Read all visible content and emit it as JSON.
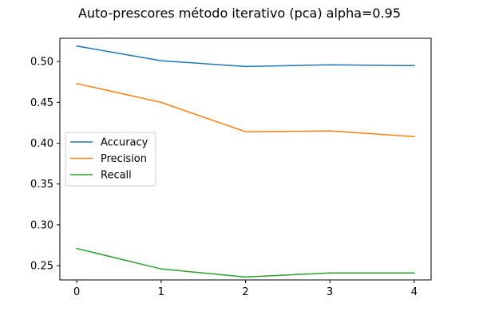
{
  "chart_data": {
    "type": "line",
    "title": "Auto-prescores método iterativo (pca) alpha=0.95",
    "xlabel": "",
    "ylabel": "",
    "x": [
      0,
      1,
      2,
      3,
      4
    ],
    "xticks": [
      "0",
      "1",
      "2",
      "3",
      "4"
    ],
    "xlim": [
      -0.2,
      4.2
    ],
    "yticks": [
      "0.25",
      "0.30",
      "0.35",
      "0.40",
      "0.45",
      "0.50"
    ],
    "ylim": [
      0.2325,
      0.5285
    ],
    "grid": false,
    "legend_position": "center-left",
    "series": [
      {
        "name": "Accuracy",
        "color": "#1f77b4",
        "values": [
          0.519,
          0.501,
          0.494,
          0.496,
          0.495
        ]
      },
      {
        "name": "Precision",
        "color": "#ff7f0e",
        "values": [
          0.473,
          0.45,
          0.414,
          0.415,
          0.408
        ]
      },
      {
        "name": "Recall",
        "color": "#2ca02c",
        "values": [
          0.271,
          0.246,
          0.236,
          0.241,
          0.241
        ]
      }
    ]
  }
}
